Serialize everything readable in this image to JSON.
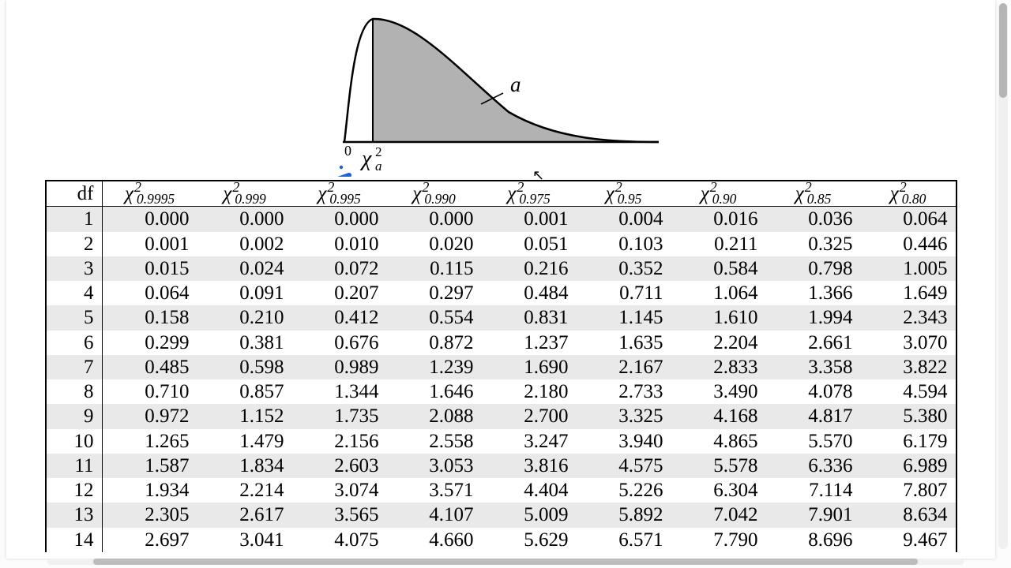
{
  "curve": {
    "type": "chi-square-density",
    "fill_color": "#b2b2b2",
    "stroke_color": "#000000",
    "stroke_width": 2.5,
    "axis_color": "#000000",
    "origin_label": "0",
    "xcrit_label_chi": "χ",
    "xcrit_label_sup": "2",
    "xcrit_label_sub": "a",
    "area_label": "a",
    "annotation_stroke": "#1f5fd6",
    "annotation_width": 6
  },
  "table": {
    "header_df": "df",
    "header_chi": "χ",
    "header_sup": "2",
    "alpha_levels": [
      "0.9995",
      "0.999",
      "0.995",
      "0.990",
      "0.975",
      "0.95",
      "0.90",
      "0.85",
      "0.80"
    ],
    "rows": [
      {
        "df": "1",
        "v": [
          "0.000",
          "0.000",
          "0.000",
          "0.000",
          "0.001",
          "0.004",
          "0.016",
          "0.036",
          "0.064"
        ]
      },
      {
        "df": "2",
        "v": [
          "0.001",
          "0.002",
          "0.010",
          "0.020",
          "0.051",
          "0.103",
          "0.211",
          "0.325",
          "0.446"
        ]
      },
      {
        "df": "3",
        "v": [
          "0.015",
          "0.024",
          "0.072",
          "0.115",
          "0.216",
          "0.352",
          "0.584",
          "0.798",
          "1.005"
        ]
      },
      {
        "df": "4",
        "v": [
          "0.064",
          "0.091",
          "0.207",
          "0.297",
          "0.484",
          "0.711",
          "1.064",
          "1.366",
          "1.649"
        ]
      },
      {
        "df": "5",
        "v": [
          "0.158",
          "0.210",
          "0.412",
          "0.554",
          "0.831",
          "1.145",
          "1.610",
          "1.994",
          "2.343"
        ]
      },
      {
        "df": "6",
        "v": [
          "0.299",
          "0.381",
          "0.676",
          "0.872",
          "1.237",
          "1.635",
          "2.204",
          "2.661",
          "3.070"
        ]
      },
      {
        "df": "7",
        "v": [
          "0.485",
          "0.598",
          "0.989",
          "1.239",
          "1.690",
          "2.167",
          "2.833",
          "3.358",
          "3.822"
        ]
      },
      {
        "df": "8",
        "v": [
          "0.710",
          "0.857",
          "1.344",
          "1.646",
          "2.180",
          "2.733",
          "3.490",
          "4.078",
          "4.594"
        ]
      },
      {
        "df": "9",
        "v": [
          "0.972",
          "1.152",
          "1.735",
          "2.088",
          "2.700",
          "3.325",
          "4.168",
          "4.817",
          "5.380"
        ]
      },
      {
        "df": "10",
        "v": [
          "1.265",
          "1.479",
          "2.156",
          "2.558",
          "3.247",
          "3.940",
          "4.865",
          "5.570",
          "6.179"
        ]
      },
      {
        "df": "11",
        "v": [
          "1.587",
          "1.834",
          "2.603",
          "3.053",
          "3.816",
          "4.575",
          "5.578",
          "6.336",
          "6.989"
        ]
      },
      {
        "df": "12",
        "v": [
          "1.934",
          "2.214",
          "3.074",
          "3.571",
          "4.404",
          "5.226",
          "6.304",
          "7.114",
          "7.807"
        ]
      },
      {
        "df": "13",
        "v": [
          "2.305",
          "2.617",
          "3.565",
          "4.107",
          "5.009",
          "5.892",
          "7.042",
          "7.901",
          "8.634"
        ]
      },
      {
        "df": "14",
        "v": [
          "2.697",
          "3.041",
          "4.075",
          "4.660",
          "5.629",
          "6.571",
          "7.790",
          "8.696",
          "9.467"
        ]
      }
    ],
    "row_shade_even": "#e9e9e9",
    "row_shade_odd": "#ffffff",
    "border_color": "#000000",
    "font_size_pt": 19
  }
}
